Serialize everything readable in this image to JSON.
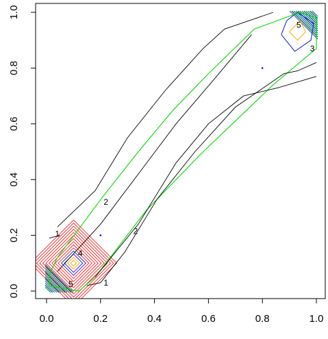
{
  "chart_data": {
    "type": "contour",
    "title": "",
    "xlabel": "",
    "ylabel": "",
    "xlim": [
      0,
      1
    ],
    "ylim": [
      0,
      1
    ],
    "x_ticks": [
      "0.0",
      "0.2",
      "0.4",
      "0.6",
      "0.8",
      "1.0"
    ],
    "y_ticks": [
      "0.0",
      "0.2",
      "0.4",
      "0.6",
      "0.8",
      "1.0"
    ],
    "x_tick_values": [
      0,
      0.2,
      0.4,
      0.6,
      0.8,
      1.0
    ],
    "y_tick_values": [
      0,
      0.2,
      0.4,
      0.6,
      0.8,
      1.0
    ],
    "grid": false,
    "legend": "none",
    "colors": {
      "level_1": "#000000",
      "level_2": "#00dd00",
      "high_red": "#ff2020",
      "high_orange": "#ffa500",
      "high_blue": "#1010e0",
      "teal": "#00807a"
    },
    "contour_labels": [
      {
        "text": "1",
        "x": 0.04,
        "y": 0.205
      },
      {
        "text": "2",
        "x": 0.22,
        "y": 0.32
      },
      {
        "text": "2",
        "x": 0.33,
        "y": 0.215
      },
      {
        "text": "1",
        "x": 0.22,
        "y": 0.03
      },
      {
        "text": "3",
        "x": 0.985,
        "y": 0.87
      },
      {
        "text": "5",
        "x": 0.935,
        "y": 0.955
      },
      {
        "text": "4",
        "x": 0.125,
        "y": 0.135
      },
      {
        "text": "5",
        "x": 0.09,
        "y": 0.025
      }
    ],
    "isolated_points": [
      {
        "x": 0.2,
        "y": 0.2
      },
      {
        "x": 0.8,
        "y": 0.8
      }
    ],
    "contours": {
      "black": [
        [
          [
            0.04,
            0.23
          ],
          [
            0.18,
            0.36
          ],
          [
            0.3,
            0.55
          ],
          [
            0.44,
            0.72
          ],
          [
            0.58,
            0.87
          ],
          [
            0.66,
            0.94
          ],
          [
            0.84,
            1.0
          ]
        ],
        [
          [
            0.04,
            0.07
          ],
          [
            0.2,
            0.24
          ],
          [
            0.34,
            0.42
          ],
          [
            0.48,
            0.6
          ],
          [
            0.63,
            0.77
          ],
          [
            0.76,
            0.92
          ]
        ],
        [
          [
            0.15,
            0.02
          ],
          [
            0.2,
            0.03
          ],
          [
            0.29,
            0.14
          ],
          [
            0.41,
            0.33
          ],
          [
            0.55,
            0.5
          ],
          [
            0.7,
            0.66
          ],
          [
            0.88,
            0.78
          ],
          [
            0.93,
            0.79
          ],
          [
            1.0,
            0.82
          ]
        ],
        [
          [
            0.18,
            0.05
          ],
          [
            0.34,
            0.24
          ],
          [
            0.48,
            0.46
          ],
          [
            0.6,
            0.6
          ],
          [
            0.73,
            0.7
          ],
          [
            0.86,
            0.73
          ],
          [
            1.0,
            0.77
          ]
        ],
        [
          [
            0.01,
            0.19
          ],
          [
            0.05,
            0.2
          ]
        ]
      ],
      "green": [
        [
          [
            0.04,
            0.12
          ],
          [
            0.21,
            0.34
          ],
          [
            0.34,
            0.5
          ],
          [
            0.47,
            0.65
          ],
          [
            0.6,
            0.78
          ],
          [
            0.77,
            0.94
          ],
          [
            0.94,
            1.0
          ],
          [
            1.0,
            0.98
          ],
          [
            1.0,
            0.87
          ],
          [
            0.84,
            0.74
          ],
          [
            0.57,
            0.49
          ],
          [
            0.37,
            0.29
          ],
          [
            0.18,
            0.05
          ],
          [
            0.12,
            0.0
          ],
          [
            0.01,
            0.02
          ],
          [
            0.01,
            0.06
          ],
          [
            0.04,
            0.12
          ]
        ]
      ]
    }
  }
}
